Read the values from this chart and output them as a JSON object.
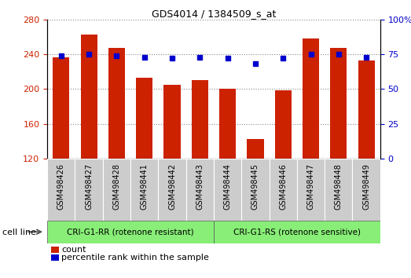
{
  "title": "GDS4014 / 1384509_s_at",
  "categories": [
    "GSM498426",
    "GSM498427",
    "GSM498428",
    "GSM498441",
    "GSM498442",
    "GSM498443",
    "GSM498444",
    "GSM498445",
    "GSM498446",
    "GSM498447",
    "GSM498448",
    "GSM498449"
  ],
  "bar_values": [
    236,
    263,
    247,
    213,
    205,
    210,
    200,
    142,
    198,
    258,
    247,
    233
  ],
  "percentile_values": [
    74,
    75,
    74,
    73,
    72,
    73,
    72,
    68,
    72,
    75,
    75,
    73
  ],
  "bar_color": "#cc2200",
  "dot_color": "#0000cc",
  "ylim_left": [
    120,
    280
  ],
  "ylim_right": [
    0,
    100
  ],
  "yticks_left": [
    120,
    160,
    200,
    240,
    280
  ],
  "yticks_right": [
    0,
    25,
    50,
    75,
    100
  ],
  "group1_label": "CRI-G1-RR (rotenone resistant)",
  "group2_label": "CRI-G1-RS (rotenone sensitive)",
  "group1_count": 6,
  "group2_count": 6,
  "cell_line_label": "cell line",
  "legend_count_label": "count",
  "legend_percentile_label": "percentile rank within the sample",
  "group_bg_color": "#88ee77",
  "tick_bg_color": "#cccccc",
  "title_color": "#000000",
  "ylabel_left_color": "#cc2200",
  "ylabel_right_color": "#0000cc",
  "bar_width": 0.6,
  "chart_bg": "#ffffff"
}
